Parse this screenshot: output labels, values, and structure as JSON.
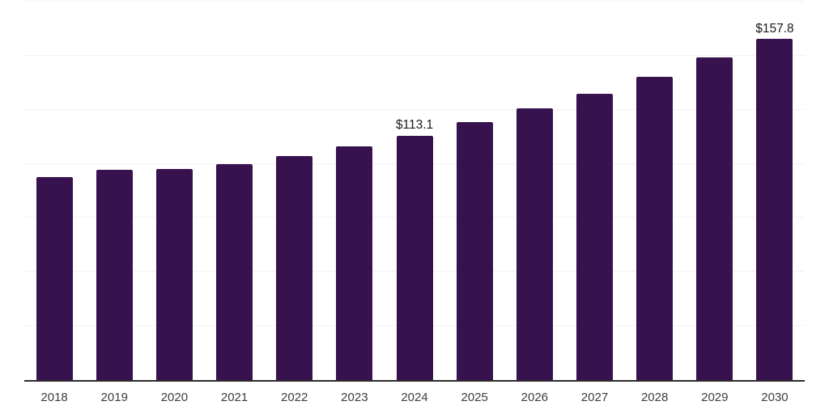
{
  "chart_data": {
    "type": "bar",
    "title": "",
    "xlabel": "",
    "ylabel": "",
    "categories": [
      "2018",
      "2019",
      "2020",
      "2021",
      "2022",
      "2023",
      "2024",
      "2025",
      "2026",
      "2027",
      "2028",
      "2029",
      "2030"
    ],
    "values": [
      93.9,
      97.4,
      97.5,
      100.0,
      103.6,
      108.2,
      113.1,
      119.3,
      125.5,
      132.4,
      140.2,
      149.3,
      157.8
    ],
    "data_labels": [
      "",
      "",
      "",
      "",
      "",
      "",
      "$113.1",
      "",
      "",
      "",
      "",
      "",
      "$157.8"
    ],
    "ylim": [
      0,
      175
    ],
    "gridline_step": 25,
    "grid": true,
    "legend": false,
    "colors": {
      "bar": "#38124e",
      "axis": "#2b2b2b",
      "gridline": "#f2f2f2",
      "data_label": "#1a1a1a",
      "tick_label": "#3d3d3d",
      "background": "#ffffff"
    }
  }
}
